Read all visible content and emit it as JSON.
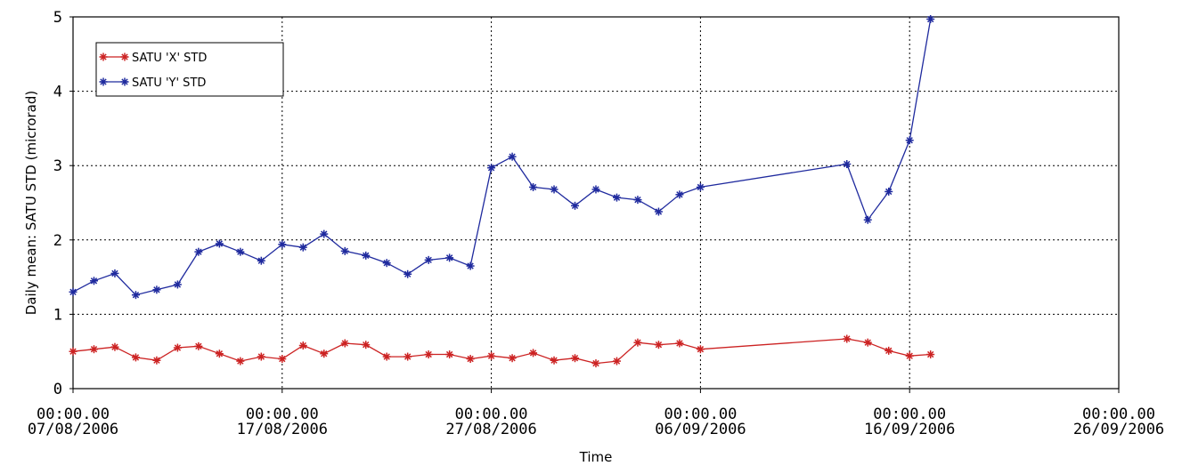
{
  "chart_data": {
    "type": "line",
    "title": "",
    "xlabel": "Time",
    "ylabel": "Daily mean: SATU STD (microrad)",
    "x_is_date": true,
    "xlim": [
      "2006-08-07",
      "2006-09-26"
    ],
    "ylim": [
      0,
      5
    ],
    "x_ticks": [
      {
        "date": "2006-08-07",
        "time_label": "00:00.00",
        "date_label": "07/08/2006"
      },
      {
        "date": "2006-08-17",
        "time_label": "00:00.00",
        "date_label": "17/08/2006"
      },
      {
        "date": "2006-08-27",
        "time_label": "00:00.00",
        "date_label": "27/08/2006"
      },
      {
        "date": "2006-09-06",
        "time_label": "00:00.00",
        "date_label": "06/09/2006"
      },
      {
        "date": "2006-09-16",
        "time_label": "00:00.00",
        "date_label": "16/09/2006"
      },
      {
        "date": "2006-09-26",
        "time_label": "00:00.00",
        "date_label": "26/09/2006"
      }
    ],
    "y_ticks": [
      "0",
      "1",
      "2",
      "3",
      "4",
      "5"
    ],
    "grid": true,
    "legend_position": "top-left",
    "series": [
      {
        "name": "SATU 'X' STD",
        "color": "#cc2222",
        "marker": "asterisk",
        "points": [
          [
            "2006-08-07",
            0.5
          ],
          [
            "2006-08-08",
            0.53
          ],
          [
            "2006-08-09",
            0.56
          ],
          [
            "2006-08-10",
            0.42
          ],
          [
            "2006-08-11",
            0.38
          ],
          [
            "2006-08-12",
            0.55
          ],
          [
            "2006-08-13",
            0.57
          ],
          [
            "2006-08-14",
            0.47
          ],
          [
            "2006-08-15",
            0.37
          ],
          [
            "2006-08-16",
            0.43
          ],
          [
            "2006-08-17",
            0.4
          ],
          [
            "2006-08-18",
            0.58
          ],
          [
            "2006-08-19",
            0.47
          ],
          [
            "2006-08-20",
            0.61
          ],
          [
            "2006-08-21",
            0.59
          ],
          [
            "2006-08-22",
            0.43
          ],
          [
            "2006-08-23",
            0.43
          ],
          [
            "2006-08-24",
            0.46
          ],
          [
            "2006-08-25",
            0.46
          ],
          [
            "2006-08-26",
            0.4
          ],
          [
            "2006-08-27",
            0.44
          ],
          [
            "2006-08-28",
            0.41
          ],
          [
            "2006-08-29",
            0.48
          ],
          [
            "2006-08-30",
            0.38
          ],
          [
            "2006-08-31",
            0.41
          ],
          [
            "2006-09-01",
            0.34
          ],
          [
            "2006-09-02",
            0.37
          ],
          [
            "2006-09-03",
            0.62
          ],
          [
            "2006-09-04",
            0.59
          ],
          [
            "2006-09-05",
            0.61
          ],
          [
            "2006-09-06",
            0.53
          ],
          [
            "2006-09-13",
            0.67
          ],
          [
            "2006-09-14",
            0.62
          ],
          [
            "2006-09-15",
            0.51
          ],
          [
            "2006-09-16",
            0.44
          ],
          [
            "2006-09-17",
            0.46
          ]
        ]
      },
      {
        "name": "SATU 'Y' STD",
        "color": "#1f2a9e",
        "marker": "asterisk",
        "points": [
          [
            "2006-08-07",
            1.3
          ],
          [
            "2006-08-08",
            1.45
          ],
          [
            "2006-08-09",
            1.55
          ],
          [
            "2006-08-10",
            1.26
          ],
          [
            "2006-08-11",
            1.33
          ],
          [
            "2006-08-12",
            1.4
          ],
          [
            "2006-08-13",
            1.84
          ],
          [
            "2006-08-14",
            1.95
          ],
          [
            "2006-08-15",
            1.84
          ],
          [
            "2006-08-16",
            1.72
          ],
          [
            "2006-08-17",
            1.94
          ],
          [
            "2006-08-18",
            1.9
          ],
          [
            "2006-08-19",
            2.08
          ],
          [
            "2006-08-20",
            1.85
          ],
          [
            "2006-08-21",
            1.79
          ],
          [
            "2006-08-22",
            1.69
          ],
          [
            "2006-08-23",
            1.54
          ],
          [
            "2006-08-24",
            1.73
          ],
          [
            "2006-08-25",
            1.76
          ],
          [
            "2006-08-26",
            1.65
          ],
          [
            "2006-08-27",
            2.97
          ],
          [
            "2006-08-28",
            3.12
          ],
          [
            "2006-08-29",
            2.71
          ],
          [
            "2006-08-30",
            2.68
          ],
          [
            "2006-08-31",
            2.46
          ],
          [
            "2006-09-01",
            2.68
          ],
          [
            "2006-09-02",
            2.57
          ],
          [
            "2006-09-03",
            2.54
          ],
          [
            "2006-09-04",
            2.38
          ],
          [
            "2006-09-05",
            2.61
          ],
          [
            "2006-09-06",
            2.71
          ],
          [
            "2006-09-13",
            3.02
          ],
          [
            "2006-09-14",
            2.27
          ],
          [
            "2006-09-15",
            2.65
          ],
          [
            "2006-09-16",
            3.34
          ],
          [
            "2006-09-17",
            4.97
          ]
        ]
      }
    ]
  }
}
